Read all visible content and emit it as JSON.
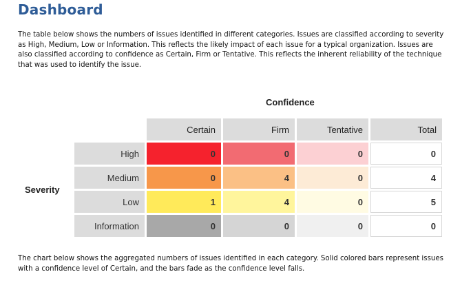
{
  "header": {
    "title": "Dashboard"
  },
  "intro_text": "The table below shows the numbers of issues identified in different categories. Issues are classified according to severity as High, Medium, Low or Information. This reflects the likely impact of each issue for a typical organization. Issues are also classified according to confidence as Certain, Firm or Tentative. This reflects the inherent reliability of the technique that was used to identify the issue.",
  "table": {
    "confidence_label": "Confidence",
    "severity_label": "Severity",
    "columns": [
      "Certain",
      "Firm",
      "Tentative",
      "Total"
    ],
    "rows": [
      {
        "label": "High",
        "certain": "0",
        "firm": "0",
        "tentative": "0",
        "total": "0",
        "colors": {
          "certain": "#f5222d",
          "firm": "#f26b72",
          "tentative": "#fcd0d3"
        }
      },
      {
        "label": "Medium",
        "certain": "0",
        "firm": "4",
        "tentative": "0",
        "total": "4",
        "colors": {
          "certain": "#f7974a",
          "firm": "#fbc085",
          "tentative": "#fdebd6"
        }
      },
      {
        "label": "Low",
        "certain": "1",
        "firm": "4",
        "tentative": "0",
        "total": "5",
        "colors": {
          "certain": "#ffea5a",
          "firm": "#fff59c",
          "tentative": "#fffbe3"
        }
      },
      {
        "label": "Information",
        "certain": "0",
        "firm": "0",
        "tentative": "0",
        "total": "0",
        "colors": {
          "certain": "#a8a8a8",
          "firm": "#d5d5d5",
          "tentative": "#f0f0f0"
        }
      }
    ]
  },
  "footer_text": "The chart below shows the aggregated numbers of issues identified in each category. Solid colored bars represent issues with a confidence level of Certain, and the bars fade as the confidence level falls."
}
